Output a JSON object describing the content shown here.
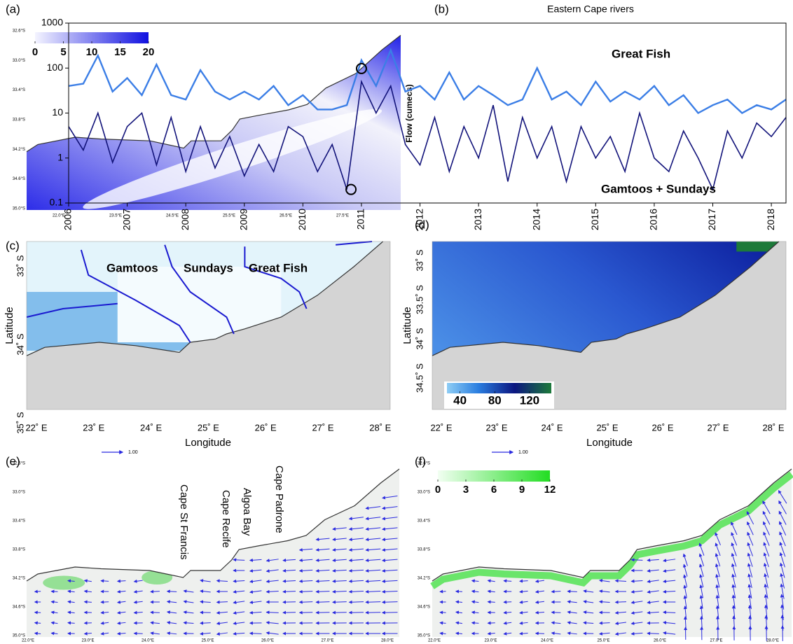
{
  "chart_data": [
    {
      "type": "map",
      "label": "(a)",
      "colorbar": {
        "lim": [
          0,
          20
        ],
        "ticks": [
          0,
          5,
          10,
          15,
          20
        ]
      },
      "lat_labels": [
        "32.6°S",
        "33.0°S",
        "33.4°S",
        "33.8°S",
        "34.2°S",
        "34.6°S",
        "35.0°S"
      ],
      "lon_labels": [
        "22.0°E",
        "23.5°E",
        "24.5°E",
        "25.5°E",
        "26.5°E",
        "27.5°E"
      ]
    },
    {
      "type": "line",
      "label": "(b)",
      "title": "Eastern Cape rivers",
      "ylabel": "Flow (cumecs)",
      "log_y": true,
      "ylim": [
        0.1,
        1000
      ],
      "yticks": [
        0.1,
        1,
        10,
        100,
        1000
      ],
      "xlim": [
        2006,
        2018.25
      ],
      "xticks": [
        2006,
        2007,
        2008,
        2009,
        2010,
        2011,
        2012,
        2013,
        2014,
        2015,
        2016,
        2017,
        2018
      ],
      "x": [
        2006,
        2006.25,
        2006.5,
        2006.75,
        2007,
        2007.25,
        2007.5,
        2007.75,
        2008,
        2008.25,
        2008.5,
        2008.75,
        2009,
        2009.25,
        2009.5,
        2009.75,
        2010,
        2010.25,
        2010.5,
        2010.75,
        2011,
        2011.25,
        2011.5,
        2011.75,
        2012,
        2012.25,
        2012.5,
        2012.75,
        2013,
        2013.25,
        2013.5,
        2013.75,
        2014,
        2014.25,
        2014.5,
        2014.75,
        2015,
        2015.25,
        2015.5,
        2015.75,
        2016,
        2016.25,
        2016.5,
        2016.75,
        2017,
        2017.25,
        2017.5,
        2017.75,
        2018,
        2018.25
      ],
      "series": [
        {
          "name": "Great Fish",
          "color": "#3b7ee6",
          "values": [
            40,
            45,
            190,
            30,
            60,
            25,
            120,
            25,
            20,
            90,
            30,
            20,
            30,
            20,
            40,
            15,
            25,
            12,
            12,
            15,
            150,
            40,
            250,
            30,
            40,
            20,
            80,
            20,
            40,
            25,
            15,
            20,
            100,
            20,
            30,
            15,
            50,
            18,
            30,
            20,
            40,
            15,
            25,
            10,
            15,
            20,
            10,
            15,
            12,
            20
          ]
        },
        {
          "name": "Gamtoos + Sundays",
          "color": "#12137a",
          "values": [
            5,
            1.5,
            10,
            0.8,
            5,
            10,
            0.7,
            8,
            0.5,
            5,
            0.6,
            3,
            0.4,
            2,
            0.5,
            5,
            3,
            0.5,
            2,
            0.2,
            50,
            10,
            40,
            2,
            0.7,
            8,
            0.5,
            5,
            1,
            15,
            0.3,
            8,
            1,
            5,
            0.3,
            5,
            1,
            3,
            0.5,
            10,
            1,
            0.5,
            4,
            1,
            0.2,
            4,
            1,
            6,
            3,
            8
          ]
        }
      ]
    },
    {
      "type": "map",
      "label": "(c)",
      "xlabel": "Longitude",
      "ylabel": "Latitude",
      "annotations": [
        "Gamtoos",
        "Sundays",
        "Great Fish"
      ],
      "lat_labels": [
        "33˚ S",
        "34˚ S",
        "35˚ S"
      ],
      "lon_labels": [
        "22˚ E",
        "23˚ E",
        "24˚ E",
        "25˚ E",
        "26˚ E",
        "27˚ E",
        "28˚ E"
      ]
    },
    {
      "type": "map",
      "label": "(d)",
      "xlabel": "Longitude",
      "ylabel": "Latitude",
      "colorbar": {
        "lim": [
          25,
          145
        ],
        "ticks": [
          40,
          80,
          120
        ]
      },
      "lat_labels": [
        "33˚ S",
        "33.5˚ S",
        "34˚ S",
        "34.5˚ S"
      ],
      "lon_labels": [
        "22˚ E",
        "23˚ E",
        "24˚ E",
        "25˚ E",
        "26˚ E",
        "27˚ E",
        "28˚ E"
      ]
    },
    {
      "type": "map",
      "label": "(e)",
      "vector_scale": "1.00",
      "annotations": [
        "Cape St Francis",
        "Cape Recife",
        "Algoa Bay",
        "Cape Padrone"
      ],
      "lat_labels": [
        "32.6°S",
        "33.0°S",
        "33.4°S",
        "33.8°S",
        "34.2°S",
        "34.6°S",
        "35.0°S"
      ],
      "lon_labels": [
        "22.0°E",
        "23.0°E",
        "24.0°E",
        "25.0°E",
        "26.0°E",
        "27.0°E",
        "28.0°E"
      ]
    },
    {
      "type": "map",
      "label": "(f)",
      "vector_scale": "1.00",
      "colorbar": {
        "lim": [
          0,
          12
        ],
        "ticks": [
          0,
          3,
          6,
          9,
          12
        ]
      },
      "lat_labels": [
        "32.6°S",
        "33.0°S",
        "33.4°S",
        "33.8°S",
        "34.2°S",
        "34.6°S",
        "35.0°S"
      ],
      "lon_labels": [
        "22.0°E",
        "23.0°E",
        "24.0°E",
        "25.0°E",
        "26.0°E",
        "27.0°E",
        "28.0°E"
      ]
    }
  ]
}
